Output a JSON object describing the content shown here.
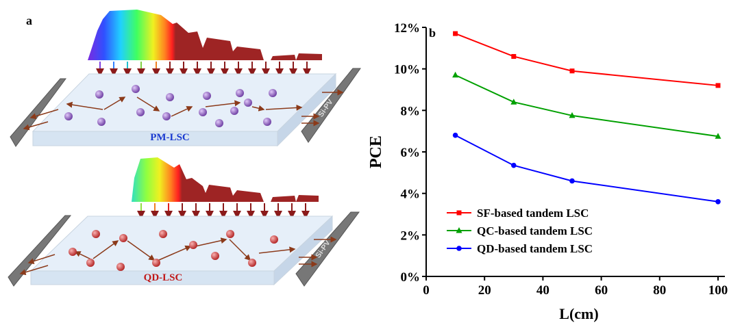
{
  "panel_a": {
    "label": "a",
    "top": {
      "label": "PM-LSC",
      "pv_label": "Si-PV"
    },
    "bottom": {
      "label": "QD-LSC",
      "pv_label": "Si-PV"
    }
  },
  "chart_data": {
    "type": "line",
    "title": "b",
    "x_label": "L(cm)",
    "y_label": "PCE",
    "x": [
      10,
      30,
      50,
      100
    ],
    "series": [
      {
        "name": "SF-based tandem LSC",
        "color": "#ff0000",
        "marker": "square",
        "values": [
          11.7,
          10.6,
          9.9,
          9.2
        ]
      },
      {
        "name": "QC-based tandem LSC",
        "color": "#00a000",
        "marker": "triangle",
        "values": [
          9.7,
          8.4,
          7.75,
          6.75
        ]
      },
      {
        "name": "QD-based tandem LSC",
        "color": "#0000ff",
        "marker": "circle",
        "values": [
          6.8,
          5.35,
          4.6,
          3.6
        ]
      }
    ],
    "xlim": [
      0,
      100
    ],
    "xticks": [
      0,
      20,
      40,
      60,
      80,
      100
    ],
    "ylim": [
      0,
      12
    ],
    "yticks": [
      {
        "value": 0,
        "label": "0%"
      },
      {
        "value": 2,
        "label": "2%"
      },
      {
        "value": 4,
        "label": "4%"
      },
      {
        "value": 6,
        "label": "6%"
      },
      {
        "value": 8,
        "label": "8%"
      },
      {
        "value": 10,
        "label": "10%"
      },
      {
        "value": 12,
        "label": "12%"
      }
    ],
    "legend": "lower left",
    "grid": false
  }
}
